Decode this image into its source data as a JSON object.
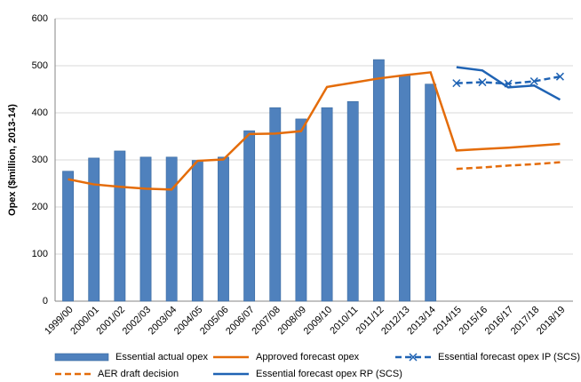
{
  "chart_data": {
    "type": "combo",
    "y_label": "Opex ($million, 2013-14)",
    "categories": [
      "1999/00",
      "2000/01",
      "2001/02",
      "2002/03",
      "2003/04",
      "2004/05",
      "2005/06",
      "2006/07",
      "2007/08",
      "2008/09",
      "2009/10",
      "2010/11",
      "2011/12",
      "2012/13",
      "2013/14",
      "2014/15",
      "2015/16",
      "2016/17",
      "2017/18",
      "2018/19"
    ],
    "ylim": [
      0,
      600
    ],
    "yticks": [
      0,
      100,
      200,
      300,
      400,
      500,
      600
    ],
    "grid": true,
    "legend": "bottom",
    "series": [
      {
        "name": "Essential actual opex",
        "type": "bar",
        "color": "#4f81bd",
        "values": [
          276,
          304,
          319,
          306,
          306,
          299,
          306,
          362,
          411,
          387,
          411,
          424,
          513,
          480,
          461,
          null,
          null,
          null,
          null,
          null
        ]
      },
      {
        "name": "Approved forecast opex",
        "type": "line",
        "color": "#e46c0a",
        "dashed": false,
        "values": [
          259,
          248,
          243,
          239,
          237,
          298,
          301,
          355,
          356,
          361,
          455,
          464,
          473,
          480,
          486,
          320,
          323,
          326,
          330,
          334
        ]
      },
      {
        "name": "Essential forecast opex IP (SCS)",
        "type": "line",
        "color": "#1f63b4",
        "dashed": true,
        "marker": "x",
        "values": [
          null,
          null,
          null,
          null,
          null,
          null,
          null,
          null,
          null,
          null,
          null,
          null,
          null,
          null,
          null,
          463,
          465,
          462,
          467,
          477
        ]
      },
      {
        "name": "AER draft decision",
        "type": "line",
        "color": "#e46c0a",
        "dashed": true,
        "values": [
          null,
          null,
          null,
          null,
          null,
          null,
          null,
          null,
          null,
          null,
          null,
          null,
          null,
          null,
          null,
          281,
          284,
          288,
          291,
          295
        ]
      },
      {
        "name": "Essential forecast opex RP (SCS)",
        "type": "line",
        "color": "#1f63b4",
        "dashed": false,
        "values": [
          null,
          null,
          null,
          null,
          null,
          null,
          null,
          null,
          null,
          null,
          null,
          null,
          null,
          null,
          null,
          497,
          490,
          454,
          458,
          428
        ]
      }
    ]
  }
}
